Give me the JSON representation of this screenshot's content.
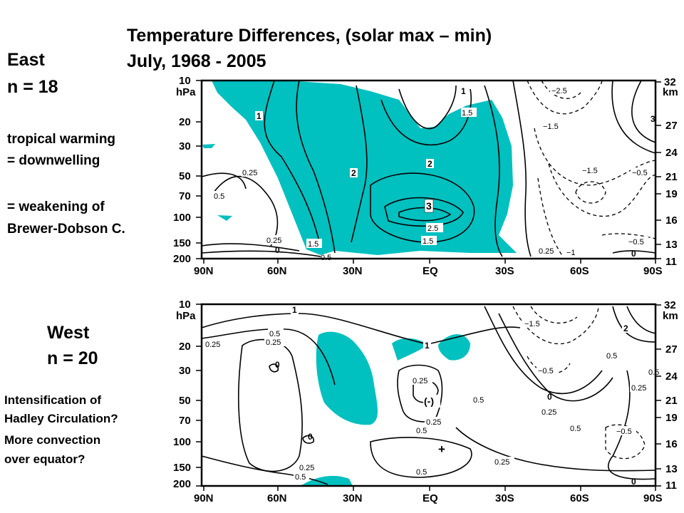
{
  "title": {
    "line1": "Temperature Differences, (solar max – min)",
    "line2": "July, 1968 - 2005"
  },
  "east": {
    "name": "East",
    "n": "n = 18",
    "note1": "tropical warming",
    "note2": "= downwelling",
    "note3": "= weakening of",
    "note4": "Brewer-Dobson C."
  },
  "west": {
    "name": "West",
    "n": "n = 20",
    "note1": "Intensification of",
    "note2": "Hadley Circulation?",
    "note3": "More convection",
    "note4": "over equator?"
  },
  "axes": {
    "pressure_unit": "hPa",
    "height_unit": "km",
    "pressure_ticks": [
      "10",
      "20",
      "30",
      "50",
      "70",
      "100",
      "150",
      "200"
    ],
    "height_ticks": [
      "32",
      "27",
      "24",
      "21",
      "19",
      "16",
      "13",
      "11"
    ],
    "lat_ticks": [
      "90N",
      "60N",
      "30N",
      "EQ",
      "30S",
      "60S",
      "90S"
    ]
  },
  "panel_top": {
    "contour_labels": [
      "1",
      "1",
      "1.5",
      "2",
      "2",
      "3",
      "2.5",
      "1.5",
      "1.5",
      "0.25",
      "0.5",
      "0.25",
      "0",
      "0.5",
      "−2.5",
      "−1.5",
      "−1.5",
      "−0.5",
      "3",
      "−0.5",
      "0",
      "0.25",
      "−1"
    ]
  },
  "panel_bottom": {
    "contour_labels": [
      "1",
      "0.5",
      "0.25",
      "0.25",
      "0",
      "0",
      "0.25",
      "0.5",
      "1",
      "−1.5",
      "2",
      "0.5",
      "−0.5",
      "0.25",
      "0.5",
      "0.25",
      "0.5",
      "0",
      "0.25",
      "0.5",
      "−0.5",
      "0.25",
      "0.5",
      "0",
      "0.25",
      "0.5"
    ],
    "marks": [
      "(-)",
      "+"
    ]
  },
  "colors": {
    "shading": "#00C0C0"
  }
}
